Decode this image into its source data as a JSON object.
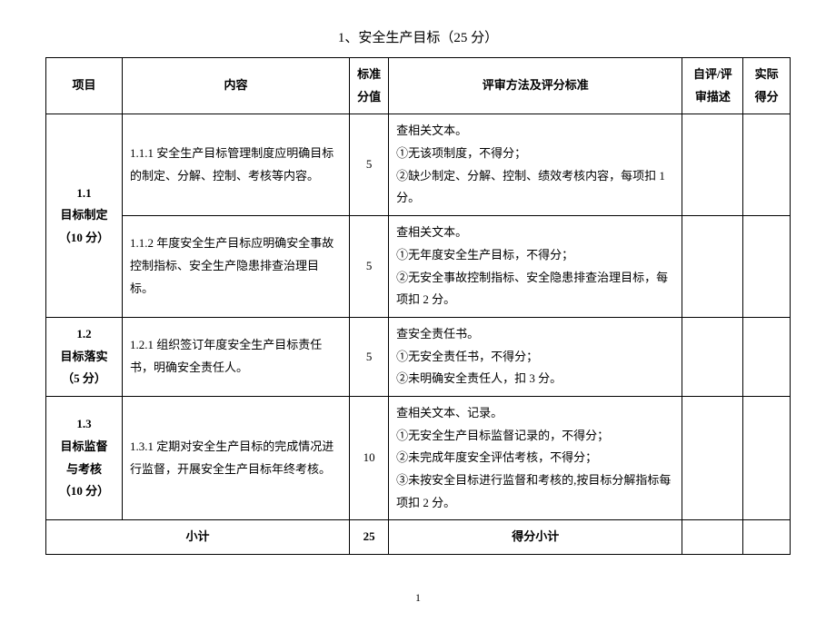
{
  "title": "1、安全生产目标（25 分）",
  "headers": {
    "project": "项目",
    "content": "内容",
    "score_std": "标准\n分值",
    "method": "评审方法及评分标准",
    "self_review": "自评/评\n审描述",
    "actual": "实际\n得分"
  },
  "sections": [
    {
      "project": "1.1\n目标制定\n（10 分）",
      "rows": [
        {
          "content": "1.1.1 安全生产目标管理制度应明确目标的制定、分解、控制、考核等内容。",
          "score": "5",
          "method": "查相关文本。\n①无该项制度，不得分；\n②缺少制定、分解、控制、绩效考核内容，每项扣 1 分。"
        },
        {
          "content": "1.1.2 年度安全生产目标应明确安全事故控制指标、安全生产隐患排查治理目标。",
          "score": "5",
          "method": "查相关文本。\n①无年度安全生产目标，不得分；\n②无安全事故控制指标、安全隐患排查治理目标，每项扣 2 分。"
        }
      ]
    },
    {
      "project": "1.2\n目标落实\n（5 分）",
      "rows": [
        {
          "content": "1.2.1 组织签订年度安全生产目标责任书，明确安全责任人。",
          "score": "5",
          "method": "查安全责任书。\n①无安全责任书，不得分；\n②未明确安全责任人，扣 3 分。"
        }
      ]
    },
    {
      "project": "1.3\n目标监督\n与考核\n（10 分）",
      "rows": [
        {
          "content": "1.3.1 定期对安全生产目标的完成情况进行监督，开展安全生产目标年终考核。",
          "score": "10",
          "method": "查相关文本、记录。\n①无安全生产目标监督记录的，不得分；\n②未完成年度安全评估考核，不得分；\n③未按安全目标进行监督和考核的,按目标分解指标每项扣 2 分。"
        }
      ]
    }
  ],
  "subtotal": {
    "label": "小计",
    "total_score": "25",
    "score_label": "得分小计"
  },
  "page_number": "1",
  "table_style": {
    "border_color": "#000000",
    "background": "#ffffff",
    "font_size": 13,
    "line_height": 1.9
  }
}
